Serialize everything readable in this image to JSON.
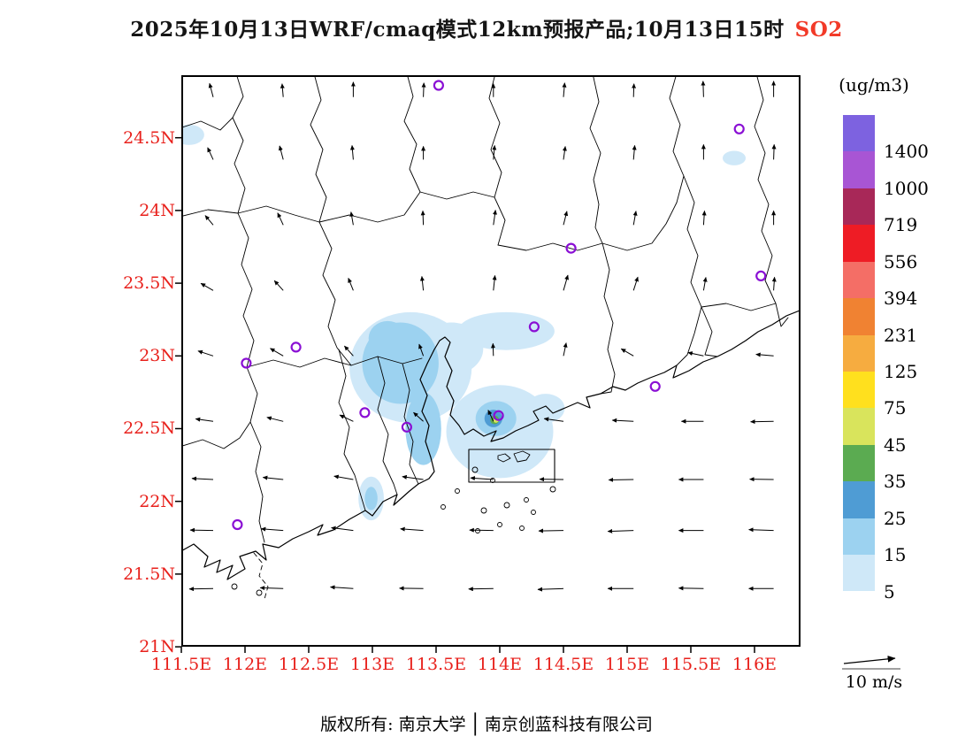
{
  "title": {
    "main": "2025年10月13日WRF/cmaq模式12km预报产品;10月13日15时",
    "pollutant": "SO2",
    "pollutant_color": "#f23a28"
  },
  "axes": {
    "color": "#e8211c",
    "lat_ticks": [
      {
        "label": "24.5N",
        "value": 24.5
      },
      {
        "label": "24N",
        "value": 24.0
      },
      {
        "label": "23.5N",
        "value": 23.5
      },
      {
        "label": "23N",
        "value": 23.0
      },
      {
        "label": "22.5N",
        "value": 22.5
      },
      {
        "label": "22N",
        "value": 22.0
      },
      {
        "label": "21.5N",
        "value": 21.5
      },
      {
        "label": "21N",
        "value": 21.0
      }
    ],
    "lon_ticks": [
      {
        "label": "111.5E",
        "value": 111.5
      },
      {
        "label": "112E",
        "value": 112.0
      },
      {
        "label": "112.5E",
        "value": 112.5
      },
      {
        "label": "113E",
        "value": 113.0
      },
      {
        "label": "113.5E",
        "value": 113.5
      },
      {
        "label": "114E",
        "value": 114.0
      },
      {
        "label": "114.5E",
        "value": 114.5
      },
      {
        "label": "115E",
        "value": 115.0
      },
      {
        "label": "115.5E",
        "value": 115.5
      },
      {
        "label": "116E",
        "value": 116.0
      }
    ]
  },
  "colorbar": {
    "unit": "(ug/m3)",
    "labels": [
      "1400",
      "1000",
      "719",
      "556",
      "394",
      "231",
      "125",
      "75",
      "45",
      "35",
      "25",
      "15",
      "5"
    ],
    "colors": [
      "#7d62e0",
      "#a855d4",
      "#a82858",
      "#ee1c25",
      "#f46e66",
      "#f08232",
      "#f6ac40",
      "#ffe01e",
      "#d9e45c",
      "#5bab51",
      "#4f9cd4",
      "#9cd2f0",
      "#cfe8f8",
      "#ffffff"
    ]
  },
  "wind_scale": {
    "label": "10 m/s"
  },
  "footer": {
    "owner": "版权所有: 南京大学",
    "divider": "│",
    "company": "南京创蓝科技有限公司"
  },
  "map": {
    "station_color": "#8a0fd4",
    "stations": [
      [
        113.52,
        24.86
      ],
      [
        115.88,
        24.56
      ],
      [
        116.05,
        23.55
      ],
      [
        114.56,
        23.74
      ],
      [
        114.27,
        23.2
      ],
      [
        115.22,
        22.79
      ],
      [
        112.01,
        22.95
      ],
      [
        112.4,
        23.06
      ],
      [
        112.94,
        22.61
      ],
      [
        113.27,
        22.51
      ],
      [
        113.99,
        22.59
      ],
      [
        111.94,
        21.84
      ]
    ],
    "plumes": [
      [
        111.56,
        24.52,
        0.12,
        0.07,
        5
      ],
      [
        115.84,
        24.36,
        0.09,
        0.05,
        5
      ],
      [
        113.3,
        22.92,
        0.48,
        0.38,
        5
      ],
      [
        114.05,
        23.17,
        0.38,
        0.13,
        5
      ],
      [
        113.62,
        23.05,
        0.25,
        0.18,
        5
      ],
      [
        114.0,
        22.48,
        0.42,
        0.32,
        5
      ],
      [
        112.99,
        22.02,
        0.1,
        0.15,
        5
      ],
      [
        114.36,
        22.64,
        0.15,
        0.1,
        5
      ],
      [
        113.22,
        22.95,
        0.3,
        0.28,
        15
      ],
      [
        113.12,
        23.12,
        0.15,
        0.12,
        15
      ],
      [
        113.4,
        22.5,
        0.14,
        0.25,
        15
      ],
      [
        113.97,
        22.57,
        0.16,
        0.12,
        15
      ],
      [
        112.99,
        22.02,
        0.05,
        0.08,
        15
      ],
      [
        113.95,
        22.57,
        0.07,
        0.06,
        25
      ],
      [
        113.96,
        22.56,
        0.035,
        0.03,
        35
      ],
      [
        113.97,
        22.555,
        0.02,
        0.015,
        45
      ]
    ],
    "wind_field": {
      "lons": [
        111.75,
        112.3,
        112.85,
        113.4,
        113.95,
        114.5,
        115.05,
        115.6,
        116.15
      ],
      "lats": [
        24.78,
        24.35,
        23.9,
        23.45,
        23.0,
        22.55,
        22.15,
        21.8,
        21.4
      ],
      "angles": [
        [
          105,
          95,
          90,
          88,
          90,
          85,
          88,
          92,
          90
        ],
        [
          115,
          105,
          95,
          90,
          85,
          82,
          85,
          90,
          88
        ],
        [
          130,
          115,
          100,
          92,
          82,
          76,
          80,
          86,
          90
        ],
        [
          150,
          132,
          112,
          96,
          84,
          74,
          72,
          80,
          86
        ],
        [
          162,
          150,
          132,
          110,
          92,
          78,
          150,
          168,
          175
        ],
        [
          172,
          166,
          155,
          138,
          115,
          172,
          177,
          180,
          181
        ],
        [
          177,
          174,
          170,
          172,
          176,
          179,
          181,
          180,
          179
        ],
        [
          179,
          176,
          173,
          176,
          179,
          181,
          182,
          180,
          178
        ],
        [
          181,
          178,
          176,
          179,
          181,
          182,
          180,
          179,
          180
        ]
      ],
      "lengths": [
        [
          16,
          15,
          17,
          16,
          15,
          16,
          15,
          18,
          18
        ],
        [
          15,
          16,
          16,
          15,
          16,
          15,
          16,
          17,
          17
        ],
        [
          14,
          15,
          15,
          16,
          17,
          16,
          16,
          16,
          16
        ],
        [
          16,
          15,
          15,
          16,
          17,
          18,
          16,
          15,
          15
        ],
        [
          18,
          17,
          15,
          14,
          14,
          15,
          16,
          18,
          20
        ],
        [
          20,
          19,
          17,
          15,
          14,
          22,
          24,
          25,
          26
        ],
        [
          24,
          23,
          22,
          24,
          26,
          27,
          28,
          28,
          27
        ],
        [
          26,
          25,
          25,
          26,
          27,
          28,
          29,
          28,
          28
        ],
        [
          27,
          26,
          26,
          27,
          28,
          29,
          29,
          28,
          28
        ]
      ]
    }
  }
}
